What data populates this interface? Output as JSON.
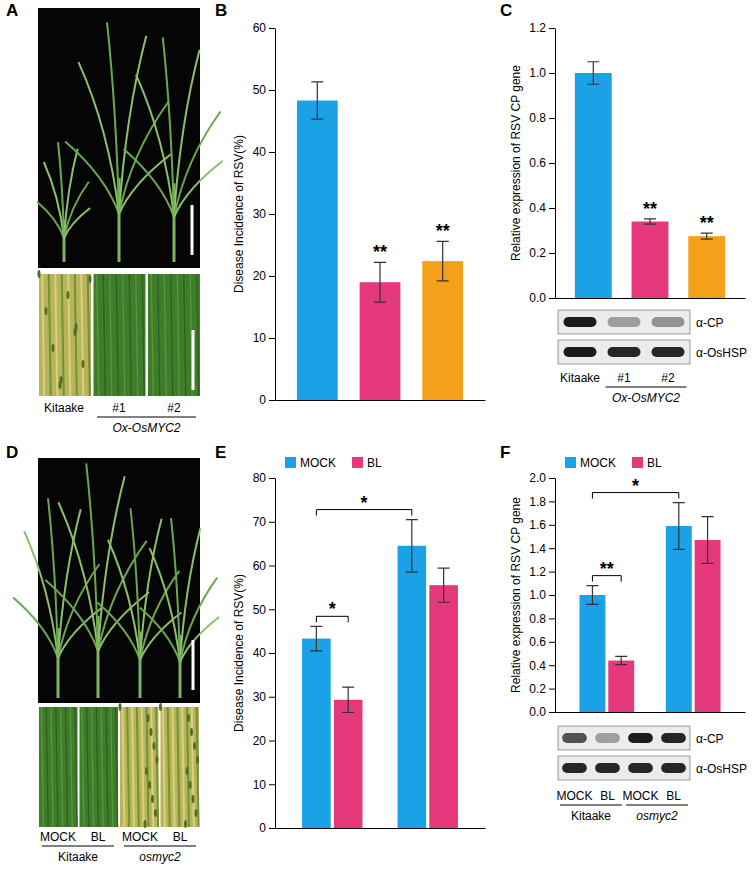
{
  "chart_data": [
    {
      "panel": "B",
      "type": "bar",
      "y_label": "Disease Incidence of RSV(%)",
      "categories": [
        null,
        null,
        null
      ],
      "values": [
        48.3,
        19.0,
        22.4
      ],
      "errors": [
        3.0,
        3.2,
        3.2
      ],
      "colors": [
        "#1ba1e6",
        "#e6397c",
        "#f5a01a"
      ],
      "significance": [
        null,
        "**",
        "**"
      ],
      "ylim": [
        0,
        60
      ],
      "yticks": [
        0,
        10,
        20,
        30,
        40,
        50,
        60
      ],
      "tick_labels": "y"
    },
    {
      "panel": "C",
      "type": "bar",
      "y_label": "Relative expression of RSV CP gene",
      "categories": [
        null,
        null,
        null
      ],
      "values": [
        1.0,
        0.34,
        0.275
      ],
      "errors": [
        0.05,
        0.012,
        0.013
      ],
      "colors": [
        "#1ba1e6",
        "#e6397c",
        "#f5a01a"
      ],
      "significance": [
        null,
        "**",
        "**"
      ],
      "ylim": [
        0,
        1.2
      ],
      "yticks": [
        {
          "value": 0,
          "label": "0.0"
        },
        0.2,
        0.4,
        0.6,
        0.8,
        {
          "value": 1,
          "label": "1.0"
        },
        1.2
      ],
      "tick_labels": "y"
    },
    {
      "panel": "E",
      "type": "bar",
      "y_label": "Disease Incidence of RSV(%)",
      "categories": [
        null,
        null
      ],
      "series": [
        {
          "name": "MOCK",
          "color": "#1ba1e6",
          "values": [
            43.3,
            64.5
          ],
          "errors": [
            2.8,
            6.0
          ]
        },
        {
          "name": "BL",
          "color": "#e6397c",
          "values": [
            29.3,
            55.5
          ],
          "errors": [
            2.9,
            3.9
          ]
        }
      ],
      "brackets": [
        {
          "text": "*",
          "from": [
            "MOCK",
            0
          ],
          "to": [
            "BL",
            0
          ]
        },
        {
          "text": "*",
          "from": [
            "MOCK",
            0
          ],
          "to": [
            "MOCK",
            1
          ]
        }
      ],
      "ylim": [
        0,
        80
      ],
      "yticks": [
        0,
        10,
        20,
        30,
        40,
        50,
        60,
        70,
        80
      ],
      "legend": "top-left",
      "tick_labels": "y"
    },
    {
      "panel": "F",
      "type": "bar",
      "y_label": "Relative expression of RSV CP gene",
      "categories": [
        null,
        null
      ],
      "series": [
        {
          "name": "MOCK",
          "color": "#1ba1e6",
          "values": [
            1.0,
            1.59
          ],
          "errors": [
            0.08,
            0.2
          ]
        },
        {
          "name": "BL",
          "color": "#e6397c",
          "values": [
            0.44,
            1.47
          ],
          "errors": [
            0.035,
            0.2
          ]
        }
      ],
      "brackets": [
        {
          "text": "**",
          "from": [
            "MOCK",
            0
          ],
          "to": [
            "BL",
            0
          ]
        },
        {
          "text": "*",
          "from": [
            "MOCK",
            0
          ],
          "to": [
            "MOCK",
            1
          ]
        }
      ],
      "ylim": [
        0,
        2.0
      ],
      "yticks": [
        {
          "value": 0,
          "label": "0.0"
        },
        0.2,
        0.4,
        0.6,
        0.8,
        {
          "value": 1,
          "label": "1.0"
        },
        1.2,
        1.4,
        1.6,
        1.8,
        {
          "value": 2,
          "label": "2.0"
        }
      ],
      "legend": "top-left",
      "tick_labels": "y"
    }
  ],
  "figure": {
    "A": {
      "panel": "A",
      "labels": [
        "Kitaake",
        "#1",
        "#2"
      ],
      "groups": [
        {
          "label": "Ox-OsMYC2",
          "lanes": [
            1,
            2
          ]
        }
      ]
    },
    "C_blot": {
      "rows": [
        "α-CP",
        "α-OsHSP"
      ],
      "lanes": [
        "Kitaake",
        "#1",
        "#2"
      ],
      "groups": [
        {
          "label": "Ox-OsMYC2",
          "lanes": [
            1,
            2
          ]
        }
      ]
    },
    "D": {
      "panel": "D",
      "labels": [
        "MOCK",
        "BL",
        "MOCK",
        "BL"
      ],
      "groups": [
        {
          "label": "Kitaake",
          "lanes": [
            0,
            1
          ]
        },
        {
          "label": "osmyc2",
          "lanes": [
            2,
            3
          ]
        }
      ]
    },
    "F_blot": {
      "rows": [
        "α-CP",
        "α-OsHSP"
      ],
      "lanes": [
        "MOCK",
        "BL",
        "MOCK",
        "BL"
      ],
      "groups": [
        {
          "label": "Kitaake",
          "lanes": [
            0,
            1
          ]
        },
        {
          "label": "osmyc2",
          "lanes": [
            2,
            3
          ]
        }
      ]
    }
  }
}
